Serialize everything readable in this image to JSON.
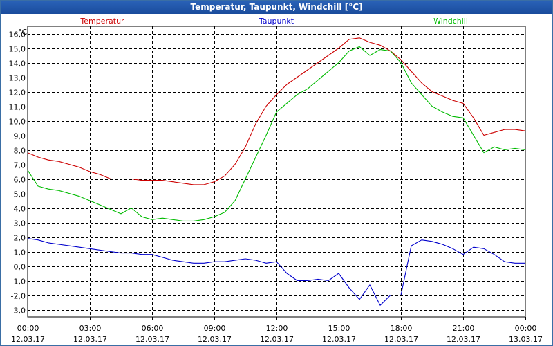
{
  "chart_data": {
    "type": "line",
    "title": "Temperatur, Taupunkt, Windchill [°C]",
    "ylabel": "°C",
    "ylim": [
      -3.5,
      16.5
    ],
    "yticks": [
      "16,0",
      "15,0",
      "14,0",
      "13,0",
      "12,0",
      "11,0",
      "10,0",
      "9,0",
      "8,0",
      "7,0",
      "6,0",
      "5,0",
      "4,0",
      "3,0",
      "2,0",
      "1,0",
      "0,0",
      "-1,0",
      "-2,0",
      "-3,0"
    ],
    "ytick_values": [
      16,
      15,
      14,
      13,
      12,
      11,
      10,
      9,
      8,
      7,
      6,
      5,
      4,
      3,
      2,
      1,
      0,
      -1,
      -2,
      -3
    ],
    "xlim": [
      0,
      24
    ],
    "xticks": [
      {
        "time": "00:00",
        "date": "12.03.17",
        "hour": 0
      },
      {
        "time": "03:00",
        "date": "12.03.17",
        "hour": 3
      },
      {
        "time": "06:00",
        "date": "12.03.17",
        "hour": 6
      },
      {
        "time": "09:00",
        "date": "12.03.17",
        "hour": 9
      },
      {
        "time": "12:00",
        "date": "12.03.17",
        "hour": 12
      },
      {
        "time": "15:00",
        "date": "12.03.17",
        "hour": 15
      },
      {
        "time": "18:00",
        "date": "12.03.17",
        "hour": 18
      },
      {
        "time": "21:00",
        "date": "12.03.17",
        "hour": 21
      },
      {
        "time": "00:00",
        "date": "13.03.17",
        "hour": 24
      }
    ],
    "grid": true,
    "series": [
      {
        "name": "Temperatur",
        "color": "#cc0000",
        "legend_position": "left",
        "x": [
          0,
          0.5,
          1,
          1.5,
          2,
          2.5,
          3,
          3.5,
          4,
          4.5,
          5,
          5.5,
          6,
          6.5,
          7,
          7.5,
          8,
          8.5,
          9,
          9.5,
          10,
          10.5,
          11,
          11.5,
          12,
          12.5,
          13,
          13.5,
          14,
          14.5,
          15,
          15.5,
          16,
          16.5,
          17,
          17.5,
          18,
          18.5,
          19,
          19.5,
          20,
          20.5,
          21,
          21.5,
          22,
          22.5,
          23,
          23.5,
          24
        ],
        "values": [
          7.8,
          7.5,
          7.3,
          7.2,
          7.0,
          6.8,
          6.5,
          6.3,
          6.0,
          6.0,
          6.0,
          5.9,
          5.9,
          5.9,
          5.8,
          5.7,
          5.6,
          5.6,
          5.8,
          6.2,
          7.0,
          8.2,
          9.8,
          11.0,
          11.8,
          12.5,
          13.0,
          13.5,
          14.0,
          14.5,
          15.0,
          15.6,
          15.7,
          15.4,
          15.2,
          14.8,
          14.2,
          13.4,
          12.6,
          12.0,
          11.7,
          11.4,
          11.2,
          10.2,
          9.0,
          9.2,
          9.4,
          9.4,
          9.3
        ]
      },
      {
        "name": "Taupunkt",
        "color": "#0000cc",
        "legend_position": "center",
        "x": [
          0,
          0.5,
          1,
          1.5,
          2,
          2.5,
          3,
          3.5,
          4,
          4.5,
          5,
          5.5,
          6,
          6.5,
          7,
          7.5,
          8,
          8.5,
          9,
          9.5,
          10,
          10.5,
          11,
          11.5,
          12,
          12.5,
          13,
          13.5,
          14,
          14.5,
          15,
          15.5,
          16,
          16.5,
          17,
          17.5,
          18,
          18.5,
          19,
          19.5,
          20,
          20.5,
          21,
          21.5,
          22,
          22.5,
          23,
          23.5,
          24
        ],
        "values": [
          1.9,
          1.8,
          1.6,
          1.5,
          1.4,
          1.3,
          1.2,
          1.1,
          1.0,
          0.9,
          0.9,
          0.8,
          0.8,
          0.6,
          0.4,
          0.3,
          0.2,
          0.2,
          0.3,
          0.3,
          0.4,
          0.5,
          0.4,
          0.2,
          0.3,
          -0.5,
          -1.0,
          -1.0,
          -0.9,
          -1.0,
          -0.5,
          -1.5,
          -2.3,
          -1.3,
          -2.7,
          -2.0,
          -2.0,
          1.4,
          1.8,
          1.7,
          1.5,
          1.2,
          0.8,
          1.3,
          1.2,
          0.8,
          0.3,
          0.2,
          0.2
        ]
      },
      {
        "name": "Windchill",
        "color": "#00bb00",
        "legend_position": "right",
        "x": [
          0,
          0.5,
          1,
          1.5,
          2,
          2.5,
          3,
          3.5,
          4,
          4.5,
          5,
          5.5,
          6,
          6.5,
          7,
          7.5,
          8,
          8.5,
          9,
          9.5,
          10,
          10.5,
          11,
          11.5,
          12,
          12.5,
          13,
          13.5,
          14,
          14.5,
          15,
          15.5,
          16,
          16.5,
          17,
          17.5,
          18,
          18.5,
          19,
          19.5,
          20,
          20.5,
          21,
          21.5,
          22,
          22.5,
          23,
          23.5,
          24
        ],
        "values": [
          6.6,
          5.5,
          5.3,
          5.2,
          5.0,
          4.8,
          4.5,
          4.2,
          3.9,
          3.6,
          4.0,
          3.4,
          3.2,
          3.3,
          3.2,
          3.1,
          3.1,
          3.2,
          3.4,
          3.7,
          4.5,
          6.0,
          7.5,
          9.0,
          10.6,
          11.2,
          11.8,
          12.2,
          12.8,
          13.4,
          14.0,
          14.8,
          15.1,
          14.5,
          14.9,
          14.8,
          14.0,
          12.6,
          11.8,
          11.0,
          10.6,
          10.3,
          10.2,
          9.0,
          7.8,
          8.2,
          8.0,
          8.1,
          8.0
        ]
      }
    ]
  }
}
